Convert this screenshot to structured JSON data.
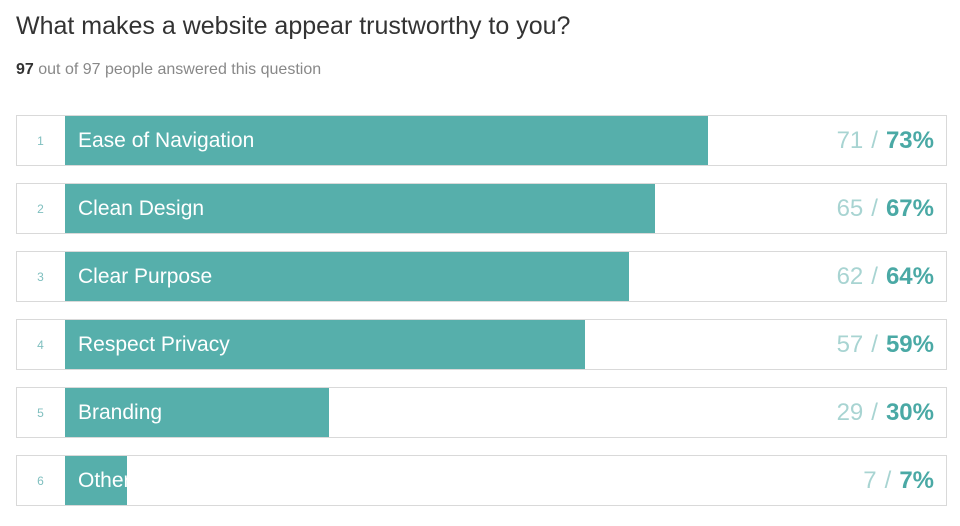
{
  "title": "What makes a website appear trustworthy to you?",
  "subtitle": {
    "answered_count": "97",
    "rest": "out of 97 people answered this question"
  },
  "colors": {
    "bar": "#56afab",
    "percent_text": "#4aa9a5",
    "count_text": "#a8d4d2",
    "rank_text": "#7fbfbf"
  },
  "chart_data": {
    "type": "bar",
    "orientation": "horizontal",
    "categories": [
      "Ease of Navigation",
      "Clean Design",
      "Clear Purpose",
      "Respect Privacy",
      "Branding",
      "Other"
    ],
    "ranks": [
      "1",
      "2",
      "3",
      "4",
      "5",
      "6"
    ],
    "counts": [
      71,
      65,
      62,
      57,
      29,
      7
    ],
    "percents": [
      73,
      67,
      64,
      59,
      30,
      7
    ],
    "count_labels": [
      "71",
      "65",
      "62",
      "57",
      "29",
      "7"
    ],
    "percent_labels": [
      "73%",
      "67%",
      "64%",
      "59%",
      "30%",
      "7%"
    ],
    "separator": "/",
    "xlim": [
      0,
      100
    ]
  }
}
